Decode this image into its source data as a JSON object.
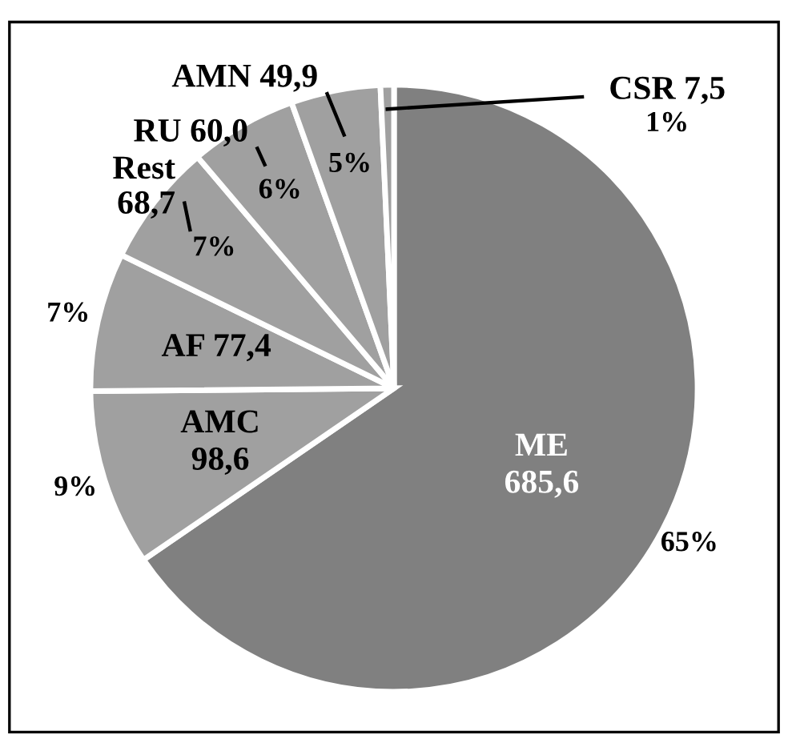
{
  "chart_data": {
    "type": "pie",
    "categories": [
      "ME",
      "AMC",
      "AF",
      "Rest",
      "RU",
      "AMN",
      "CSR"
    ],
    "values": [
      685.6,
      98.6,
      77.4,
      68.7,
      60.0,
      49.9,
      7.5
    ],
    "value_labels": [
      "685,6",
      "98,6",
      "77,4",
      "68,7",
      "60,0",
      "49,9",
      "7,5"
    ],
    "colors": [
      "#808080",
      "#a0a0a0",
      "#a0a0a0",
      "#a0a0a0",
      "#a0a0a0",
      "#a0a0a0",
      "#a0a0a0"
    ],
    "annotations": [
      "65%",
      "9%",
      "7%",
      "7%",
      "6%",
      "5%",
      "1%"
    ],
    "legend": false
  }
}
